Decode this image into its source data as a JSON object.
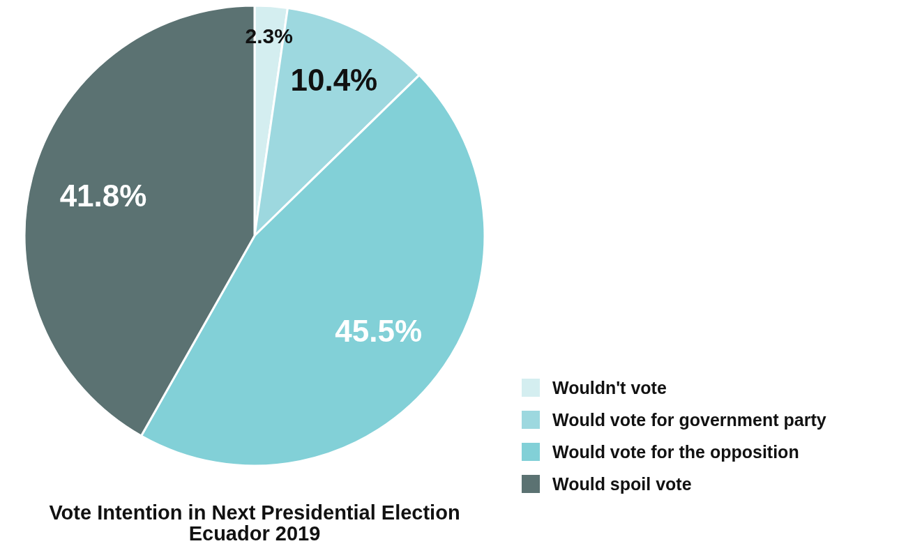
{
  "chart_data": {
    "type": "pie",
    "title": "Vote Intention in Next Presidential Election",
    "subtitle": "Ecuador 2019",
    "categories": [
      "Wouldn't vote",
      "Would vote for government party",
      "Would vote for the opposition",
      "Would spoil vote"
    ],
    "values": [
      2.3,
      10.4,
      45.5,
      41.8
    ],
    "colors": [
      "#d4eef0",
      "#9dd8df",
      "#82d0d7",
      "#5b7272"
    ],
    "value_labels": [
      "2.3%",
      "10.4%",
      "45.5%",
      "41.8%"
    ],
    "legend": "bottom right"
  }
}
